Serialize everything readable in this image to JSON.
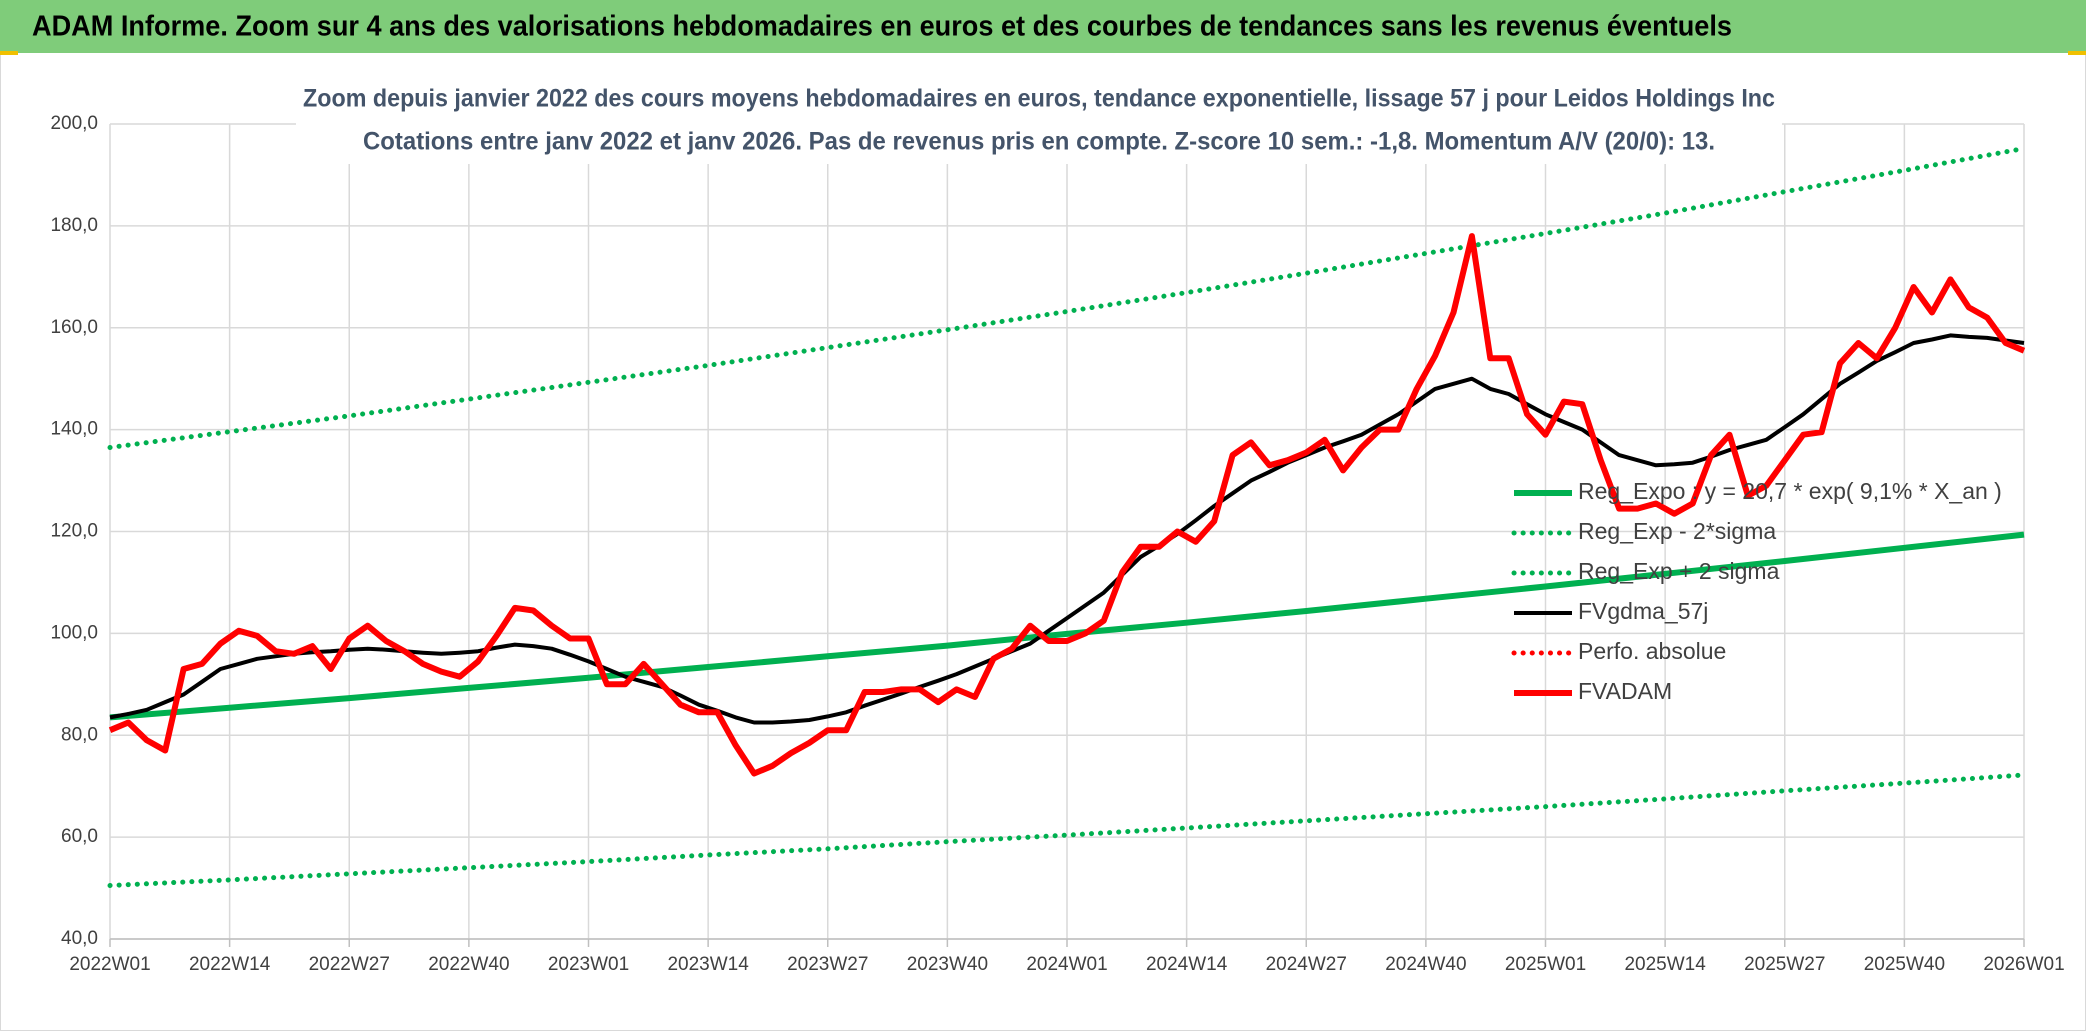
{
  "chart_data": {
    "type": "line",
    "header": "ADAM Informe. Zoom sur 4 ans des valorisations hebdomadaires en euros et des courbes de tendances sans les revenus éventuels",
    "title": "Zoom depuis janvier 2022 des cours moyens hebdomadaires en euros, tendance exponentielle, lissage 57 j pour Leidos Holdings Inc",
    "subtitle": "Cotations entre janv 2022 et janv 2026. Pas de revenus pris en compte. Z-score 10 sem.: -1,8. Momentum A/V (20/0): 13.",
    "x": [
      0,
      2,
      4,
      6,
      8,
      10,
      12,
      14,
      16,
      18,
      20,
      22,
      24,
      26,
      28,
      30,
      32,
      34,
      36,
      38,
      40,
      42,
      44,
      46,
      48,
      50,
      52,
      54,
      56,
      58,
      60,
      62,
      64,
      66,
      68,
      70,
      72,
      74,
      76,
      78,
      80,
      82,
      84,
      86,
      88,
      90,
      92,
      94,
      96,
      98,
      100,
      102,
      104,
      106,
      108,
      110,
      112,
      114,
      116,
      118,
      120,
      122,
      124,
      126,
      128,
      130,
      132,
      134,
      136,
      138,
      140,
      142,
      144,
      146,
      148,
      150,
      152,
      154,
      156,
      158,
      160,
      162,
      164,
      166,
      168,
      170,
      172,
      174,
      176,
      178,
      180,
      182,
      184,
      186,
      188,
      190,
      192,
      194,
      196,
      198,
      200,
      202,
      204,
      206,
      208
    ],
    "xlim": [
      0,
      208
    ],
    "xticks": [
      {
        "value": 0,
        "label": "2022W01"
      },
      {
        "value": 13,
        "label": "2022W14"
      },
      {
        "value": 26,
        "label": "2022W27"
      },
      {
        "value": 39,
        "label": "2022W40"
      },
      {
        "value": 52,
        "label": "2023W01"
      },
      {
        "value": 65,
        "label": "2023W14"
      },
      {
        "value": 78,
        "label": "2023W27"
      },
      {
        "value": 91,
        "label": "2023W40"
      },
      {
        "value": 104,
        "label": "2024W01"
      },
      {
        "value": 117,
        "label": "2024W14"
      },
      {
        "value": 130,
        "label": "2024W27"
      },
      {
        "value": 143,
        "label": "2024W40"
      },
      {
        "value": 156,
        "label": "2025W01"
      },
      {
        "value": 169,
        "label": "2025W14"
      },
      {
        "value": 182,
        "label": "2025W27"
      },
      {
        "value": 195,
        "label": "2025W40"
      },
      {
        "value": 208,
        "label": "2026W01"
      }
    ],
    "ylim": [
      40,
      200
    ],
    "yticks": [
      {
        "value": 40,
        "label": "40,0"
      },
      {
        "value": 60,
        "label": "60,0"
      },
      {
        "value": 80,
        "label": "80,0"
      },
      {
        "value": 100,
        "label": "100,0"
      },
      {
        "value": 120,
        "label": "120,0"
      },
      {
        "value": 140,
        "label": "140,0"
      },
      {
        "value": 160,
        "label": "160,0"
      },
      {
        "value": 180,
        "label": "180,0"
      },
      {
        "value": 200,
        "label": "200,0"
      }
    ],
    "grid": true,
    "legend": "lower right",
    "series": [
      {
        "name": "Reg_Expo : y = 20,7 * exp( 9,1% *  X_an )",
        "color": "#00b050",
        "dash": "solid",
        "x": [
          0,
          13,
          26,
          39,
          52,
          65,
          78,
          91,
          104,
          117,
          130,
          143,
          156,
          169,
          182,
          195,
          208
        ],
        "values": [
          83.5,
          85.4,
          87.3,
          89.3,
          91.3,
          93.4,
          95.5,
          97.6,
          99.9,
          102.1,
          104.4,
          106.8,
          109.2,
          111.7,
          114.2,
          116.8,
          119.4
        ]
      },
      {
        "name": "Reg_Exp - 2*sigma",
        "color": "#00b050",
        "dash": "dotted",
        "x": [
          0,
          13,
          26,
          39,
          52,
          65,
          78,
          91,
          104,
          117,
          130,
          143,
          156,
          169,
          182,
          195,
          208
        ],
        "values": [
          50.5,
          51.6,
          52.8,
          54.0,
          55.2,
          56.5,
          57.7,
          59.1,
          60.4,
          61.8,
          63.2,
          64.6,
          66.0,
          67.5,
          69.1,
          70.6,
          72.2
        ]
      },
      {
        "name": "Reg_Exp + 2 sigma",
        "color": "#00b050",
        "dash": "dotted",
        "x": [
          0,
          13,
          26,
          39,
          52,
          65,
          78,
          91,
          104,
          117,
          130,
          143,
          156,
          169,
          182,
          195,
          208
        ],
        "values": [
          136.5,
          139.6,
          142.7,
          146.0,
          149.3,
          152.6,
          156.1,
          159.6,
          163.2,
          166.9,
          170.7,
          174.6,
          178.5,
          182.5,
          186.7,
          190.9,
          195.2
        ]
      },
      {
        "name": "FVgdma_57j",
        "color": "#000000",
        "dash": "solid",
        "values": [
          83.5,
          84.2,
          85,
          86.5,
          88,
          90.5,
          93,
          94,
          95,
          95.5,
          96,
          96.3,
          96.5,
          96.8,
          97,
          96.8,
          96.5,
          96.2,
          96,
          96.2,
          96.5,
          97.2,
          97.8,
          97.5,
          97,
          95.8,
          94.5,
          93,
          91.5,
          90.5,
          89.5,
          87.8,
          86,
          84.8,
          83.5,
          82.5,
          82.5,
          82.7,
          83,
          83.7,
          84.5,
          85.8,
          87,
          88.2,
          89.5,
          90.7,
          92,
          93.5,
          95,
          96.5,
          98,
          100.5,
          103,
          105.5,
          108,
          111.5,
          115,
          117.2,
          119.5,
          122.2,
          125,
          127.5,
          130,
          131.7,
          133.5,
          135,
          136.5,
          137.7,
          139,
          141,
          143,
          145.5,
          148,
          149,
          150,
          148,
          147,
          145,
          143,
          141.5,
          140,
          137.5,
          135,
          134,
          133,
          133.2,
          133.5,
          134.7,
          136,
          137,
          138,
          140.5,
          143,
          146,
          149,
          151.2,
          153.5,
          155.2,
          157,
          157.7,
          158.5,
          158.2,
          158,
          157.5,
          157
        ]
      },
      {
        "name": "Perfo. absolue",
        "color": "#ff0000",
        "dash": "dotted",
        "x": [],
        "values": []
      },
      {
        "name": "FVADAM",
        "color": "#ff0000",
        "dash": "solid",
        "values": [
          81,
          82.5,
          79,
          77,
          93,
          94,
          98,
          100.5,
          99.5,
          96.5,
          96,
          97.5,
          93,
          99,
          101.5,
          98.5,
          96.5,
          94,
          92.5,
          91.5,
          94.5,
          99.5,
          105,
          104.5,
          101.5,
          99,
          99,
          90,
          90,
          94,
          90,
          86,
          84.5,
          84.5,
          78,
          72.5,
          74,
          76.5,
          78.5,
          81,
          81,
          88.5,
          88.5,
          89,
          89,
          86.5,
          89,
          87.5,
          95,
          97,
          101.5,
          98.5,
          98.5,
          100,
          102.5,
          112,
          117,
          117,
          120,
          118,
          122,
          135,
          137.5,
          133,
          134,
          135.5,
          138,
          132,
          136.5,
          140,
          140,
          148,
          154.5,
          163,
          178,
          154,
          154,
          143,
          139,
          145.5,
          145,
          134,
          124.5,
          124.5,
          125.5,
          123.5,
          125.5,
          135,
          139,
          127,
          129,
          134,
          139,
          139.5,
          153,
          157,
          154,
          160,
          168,
          163,
          169.5,
          164,
          162,
          157,
          155.5
        ]
      }
    ]
  }
}
